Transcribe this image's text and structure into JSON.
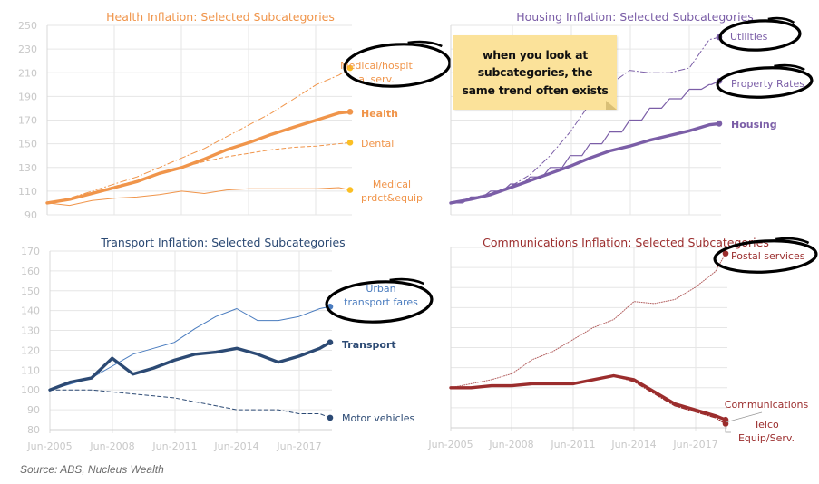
{
  "source": "Source: ABS, Nucleus Wealth",
  "note": "when you look at subcategories, the same trend often exists",
  "colors": {
    "health": "#f0954b",
    "health_marker": "#fbbf24",
    "housing": "#7b5ea7",
    "transport": "#2c4a74",
    "transport_light": "#4a7cbf",
    "comms": "#9b2d2d",
    "grid": "#e6e6e6",
    "tick": "#c8c8c8",
    "note_bg": "#fbe29a",
    "circle": "#000000"
  },
  "chart_data": [
    {
      "id": "health",
      "type": "line",
      "title": "Health Inflation: Selected Subcategories",
      "x_ticks": [],
      "ylim": [
        90,
        250
      ],
      "y_ticks": [
        "90",
        "110",
        "130",
        "150",
        "170",
        "190",
        "210",
        "230",
        "250"
      ],
      "x": [
        "Jun-2005",
        "Jun-2006",
        "Jun-2007",
        "Jun-2008",
        "Jun-2009",
        "Jun-2010",
        "Jun-2011",
        "Jun-2012",
        "Jun-2013",
        "Jun-2014",
        "Jun-2015",
        "Jun-2016",
        "Jun-2017",
        "Jun-2018",
        "Dec-2018"
      ],
      "series": [
        {
          "name": "Medical/hospital serv.",
          "label": "Medical/hospit al serv.",
          "style": "dashdot",
          "values": [
            100,
            104,
            110,
            116,
            122,
            130,
            138,
            146,
            156,
            166,
            176,
            188,
            200,
            208,
            214
          ],
          "circled": true
        },
        {
          "name": "Health",
          "label": "Health",
          "style": "thick",
          "values": [
            100,
            103,
            108,
            113,
            118,
            125,
            130,
            137,
            145,
            151,
            158,
            164,
            170,
            176,
            177
          ]
        },
        {
          "name": "Dental",
          "label": "Dental",
          "style": "dashed",
          "values": [
            100,
            104,
            109,
            114,
            119,
            125,
            130,
            135,
            139,
            142,
            145,
            147,
            148,
            150,
            151
          ]
        },
        {
          "name": "Medical prdct&equip",
          "label": "Medical prdct&equip",
          "style": "thin",
          "values": [
            100,
            98,
            102,
            104,
            105,
            107,
            110,
            108,
            111,
            112,
            112,
            112,
            112,
            113,
            111
          ]
        }
      ]
    },
    {
      "id": "housing",
      "type": "line",
      "title": "Housing Inflation: Selected Subcategories",
      "ylim": [
        90,
        250
      ],
      "x": [
        "Jun-2005",
        "Jun-2006",
        "Jun-2007",
        "Jun-2008",
        "Jun-2009",
        "Jun-2010",
        "Jun-2011",
        "Jun-2012",
        "Jun-2013",
        "Jun-2014",
        "Jun-2015",
        "Jun-2016",
        "Jun-2017",
        "Jun-2018",
        "Dec-2018"
      ],
      "series": [
        {
          "name": "Utilities",
          "label": "Utilities",
          "style": "dashdot",
          "values": [
            100,
            104,
            108,
            114,
            124,
            140,
            160,
            184,
            200,
            212,
            210,
            210,
            214,
            238,
            240
          ],
          "circled": true
        },
        {
          "name": "Property Rates",
          "label": "Property Rates",
          "style": "thin-step",
          "values": [
            100,
            105,
            110,
            116,
            122,
            130,
            140,
            150,
            160,
            170,
            180,
            188,
            196,
            200,
            203
          ],
          "circled": true
        },
        {
          "name": "Housing",
          "label": "Housing",
          "style": "thick",
          "values": [
            100,
            103,
            107,
            113,
            119,
            125,
            131,
            138,
            144,
            148,
            153,
            157,
            161,
            166,
            167
          ]
        }
      ]
    },
    {
      "id": "transport",
      "type": "line",
      "title": "Transport Inflation: Selected Subcategories",
      "ylim": [
        80,
        170
      ],
      "y_ticks": [
        "80",
        "90",
        "100",
        "110",
        "120",
        "130",
        "140",
        "150",
        "160",
        "170"
      ],
      "x_ticks": [
        "Jun-2005",
        "Jun-2008",
        "Jun-2011",
        "Jun-2014",
        "Jun-2017"
      ],
      "x": [
        "Jun-2005",
        "Jun-2006",
        "Jun-2007",
        "Jun-2008",
        "Jun-2009",
        "Jun-2010",
        "Jun-2011",
        "Jun-2012",
        "Jun-2013",
        "Jun-2014",
        "Jun-2015",
        "Jun-2016",
        "Jun-2017",
        "Jun-2018",
        "Dec-2018"
      ],
      "series": [
        {
          "name": "Urban transport fares",
          "label": "Urban transport fares",
          "style": "thin-light",
          "values": [
            100,
            103,
            106,
            112,
            118,
            121,
            124,
            131,
            137,
            141,
            135,
            135,
            137,
            141,
            142
          ],
          "circled": true
        },
        {
          "name": "Transport",
          "label": "Transport",
          "style": "thick",
          "values": [
            100,
            104,
            106,
            116,
            108,
            111,
            115,
            118,
            119,
            121,
            118,
            114,
            117,
            121,
            124
          ]
        },
        {
          "name": "Motor vehicles",
          "label": "Motor vehicles",
          "style": "dashed",
          "values": [
            100,
            100,
            100,
            99,
            98,
            97,
            96,
            94,
            92,
            90,
            90,
            90,
            88,
            88,
            86
          ]
        }
      ]
    },
    {
      "id": "communications",
      "type": "line",
      "title": "Communications Inflation: Selected Subcategories",
      "x_ticks": [
        "Jun-2005",
        "Jun-2008",
        "Jun-2011",
        "Jun-2014",
        "Jun-2017"
      ],
      "ylim": [
        80,
        170
      ],
      "x": [
        "Jun-2005",
        "Jun-2006",
        "Jun-2007",
        "Jun-2008",
        "Jun-2009",
        "Jun-2010",
        "Jun-2011",
        "Jun-2012",
        "Jun-2013",
        "Jun-2014",
        "Jun-2015",
        "Jun-2016",
        "Jun-2017",
        "Jun-2018",
        "Dec-2018"
      ],
      "series": [
        {
          "name": "Postal services",
          "label": "Postal services",
          "style": "dotted",
          "values": [
            100,
            102,
            104,
            107,
            114,
            118,
            124,
            130,
            134,
            143,
            142,
            144,
            150,
            158,
            167
          ],
          "circled": true
        },
        {
          "name": "Communications",
          "label": "Communications",
          "style": "thick",
          "values": [
            100,
            100,
            101,
            101,
            102,
            102,
            102,
            104,
            106,
            104,
            98,
            92,
            89,
            86,
            84
          ]
        },
        {
          "name": "Telco Equip/Serv.",
          "label": "Telco Equip/Serv.",
          "style": "dashdot-dark",
          "values": [
            100,
            100,
            101,
            101,
            102,
            102,
            102,
            104,
            106,
            103,
            97,
            91,
            88,
            85,
            82
          ]
        }
      ]
    }
  ]
}
